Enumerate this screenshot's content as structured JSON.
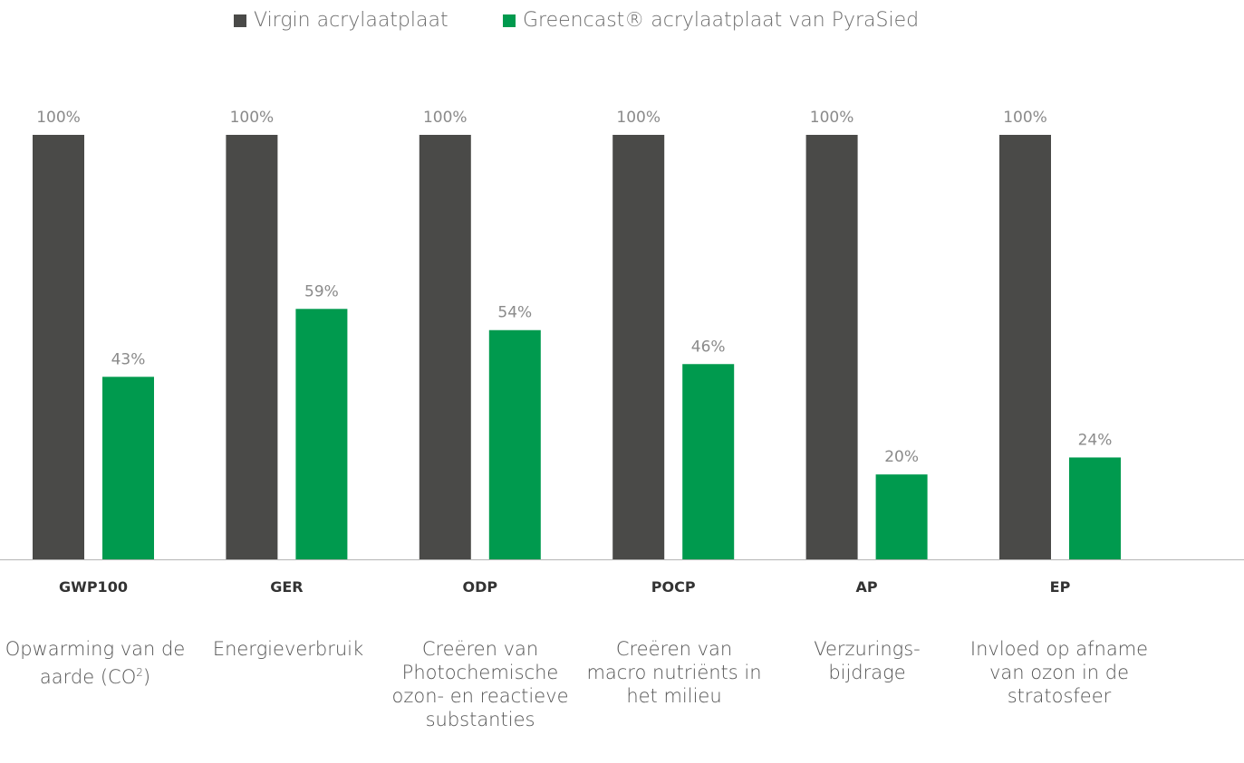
{
  "chart_data": {
    "type": "bar",
    "title": "",
    "xlabel": "",
    "ylabel": "",
    "ylim": [
      0,
      100
    ],
    "grid": false,
    "legend_position": "top-center",
    "value_suffix": "%",
    "categories": [
      "GWP100",
      "GER",
      "ODP",
      "POCP",
      "AP",
      "EP"
    ],
    "series": [
      {
        "name": "Virgin acrylaatplaat",
        "color": "#4a4a48",
        "values": [
          100,
          100,
          100,
          100,
          100,
          100
        ]
      },
      {
        "name": "Greencast® acrylaatplaat van PyraSied",
        "color": "#009a4e",
        "values": [
          43,
          59,
          54,
          46,
          20,
          24
        ]
      }
    ],
    "descriptions": [
      "Opwarming van de aarde (CO²)",
      "Energieverbruik",
      "Creëren van Photochemische ozon- en reactieve substanties",
      "Creëren van macro nutriënts in het milieu",
      "Verzurings-bijdrage",
      "Invloed op afname van ozon in de stratosfeer"
    ]
  }
}
